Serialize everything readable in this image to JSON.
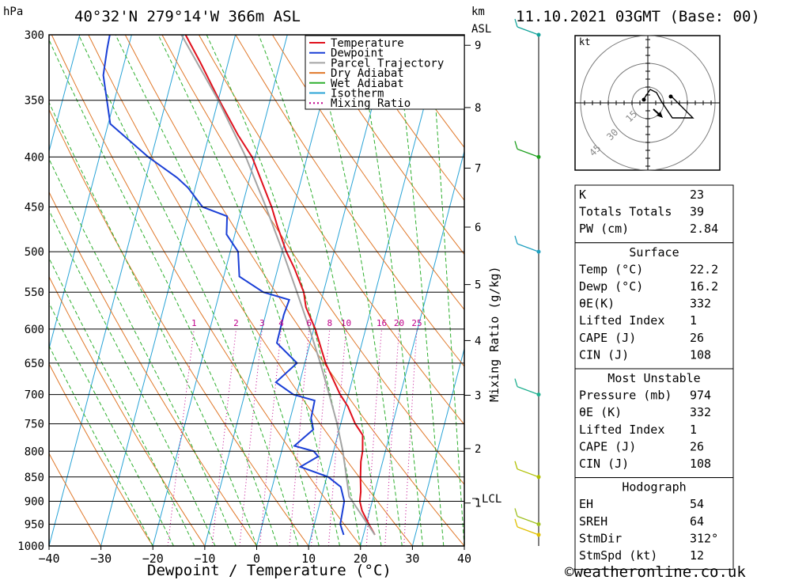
{
  "header": {
    "p_unit": "hPa",
    "location": "40°32'N  279°14'W  366m  ASL",
    "km_unit": "km",
    "asl_unit": "ASL",
    "datetime": "11.10.2021  03GMT  (Base: 00)"
  },
  "chart_data": {
    "type": "line",
    "subtype": "skew-T log-p",
    "xlabel": "Dewpoint / Temperature (°C)",
    "ylabel": "hPa",
    "secondary_ylabel": "Mixing Ratio (g/kg)",
    "xlim": [
      -40,
      40
    ],
    "ylim": [
      1000,
      300
    ],
    "x_ticks": [
      -40,
      -30,
      -20,
      -10,
      0,
      10,
      20,
      30,
      40
    ],
    "x_tick_labels": [
      "−40",
      "−30",
      "−20",
      "−10",
      "0",
      "10",
      "20",
      "30",
      "40"
    ],
    "pressure_levels": [
      300,
      350,
      400,
      450,
      500,
      550,
      600,
      650,
      700,
      750,
      800,
      850,
      900,
      950,
      1000
    ],
    "km_ticks": [
      1,
      2,
      3,
      4,
      5,
      6,
      7,
      8,
      9
    ],
    "lcl_label": "LCL",
    "lcl_pressure": 890,
    "mixing_ratio_labels": [
      "1",
      "2",
      "3",
      "4",
      "6",
      "8",
      "10",
      "16",
      "20",
      "25"
    ],
    "mixing_ratio_label_pressure": 600,
    "series": [
      {
        "name": "Temperature",
        "color": "#e0101c",
        "points": [
          [
            974,
            22.2
          ],
          [
            950,
            20.5
          ],
          [
            920,
            18.5
          ],
          [
            900,
            17.6
          ],
          [
            880,
            17.3
          ],
          [
            850,
            16.5
          ],
          [
            820,
            15.8
          ],
          [
            800,
            15.6
          ],
          [
            770,
            14.8
          ],
          [
            750,
            12.8
          ],
          [
            720,
            10.5
          ],
          [
            700,
            8.4
          ],
          [
            650,
            4.0
          ],
          [
            600,
            0.3
          ],
          [
            570,
            -2.6
          ],
          [
            550,
            -3.8
          ],
          [
            520,
            -6.8
          ],
          [
            500,
            -9.2
          ],
          [
            470,
            -12.3
          ],
          [
            450,
            -14.3
          ],
          [
            420,
            -18.0
          ],
          [
            400,
            -20.6
          ],
          [
            380,
            -24.4
          ],
          [
            350,
            -29.8
          ],
          [
            320,
            -35.4
          ],
          [
            300,
            -39.6
          ]
        ]
      },
      {
        "name": "Dewpoint",
        "color": "#1a3fd6",
        "points": [
          [
            974,
            16.2
          ],
          [
            950,
            15.0
          ],
          [
            900,
            14.6
          ],
          [
            870,
            13.2
          ],
          [
            850,
            10.3
          ],
          [
            830,
            4.4
          ],
          [
            810,
            7.3
          ],
          [
            800,
            6.2
          ],
          [
            790,
            2.2
          ],
          [
            760,
            5.0
          ],
          [
            740,
            4.0
          ],
          [
            710,
            3.8
          ],
          [
            700,
            -0.6
          ],
          [
            680,
            -4.6
          ],
          [
            650,
            -1.5
          ],
          [
            620,
            -6.4
          ],
          [
            580,
            -6.5
          ],
          [
            560,
            -6.2
          ],
          [
            550,
            -11.6
          ],
          [
            530,
            -17.0
          ],
          [
            500,
            -18.5
          ],
          [
            480,
            -21.6
          ],
          [
            460,
            -22.4
          ],
          [
            450,
            -27.6
          ],
          [
            430,
            -31.4
          ],
          [
            420,
            -34.0
          ],
          [
            400,
            -40.6
          ],
          [
            370,
            -49.6
          ],
          [
            330,
            -53.4
          ],
          [
            310,
            -54.0
          ],
          [
            300,
            -54.2
          ]
        ]
      },
      {
        "name": "Parcel Trajectory",
        "color": "#a4a4a4",
        "points": [
          [
            974,
            22.2
          ],
          [
            890,
            15.3
          ],
          [
            850,
            13.8
          ],
          [
            800,
            11.8
          ],
          [
            750,
            9.3
          ],
          [
            700,
            6.3
          ],
          [
            650,
            3.0
          ],
          [
            600,
            -0.8
          ],
          [
            550,
            -5.1
          ],
          [
            500,
            -9.9
          ],
          [
            450,
            -15.4
          ],
          [
            400,
            -21.8
          ],
          [
            350,
            -30.0
          ],
          [
            300,
            -40.4
          ]
        ]
      }
    ],
    "background_lines": [
      "Dry Adiabat",
      "Wet Adiabat",
      "Isotherm",
      "Mixing Ratio"
    ]
  },
  "legend": {
    "items": [
      {
        "label": "Temperature",
        "color": "#e0101c",
        "style": "solid"
      },
      {
        "label": "Dewpoint",
        "color": "#1a3fd6",
        "style": "solid"
      },
      {
        "label": "Parcel Trajectory",
        "color": "#a4a4a4",
        "style": "solid"
      },
      {
        "label": "Dry Adiabat",
        "color": "#e0782a",
        "style": "solid"
      },
      {
        "label": "Wet Adiabat",
        "color": "#2fb02f",
        "style": "solid"
      },
      {
        "label": "Isotherm",
        "color": "#29a3d6",
        "style": "solid"
      },
      {
        "label": "Mixing Ratio",
        "color": "#c0008a",
        "style": "dotted"
      }
    ]
  },
  "wind_profile": {
    "barb_pressures": [
      300,
      400,
      500,
      700,
      850,
      950,
      974
    ]
  },
  "hodograph": {
    "unit_label": "kt",
    "ring_labels": [
      "15",
      "30",
      "45"
    ]
  },
  "indices": {
    "rows": [
      {
        "label": "K",
        "value": "23"
      },
      {
        "label": "Totals Totals",
        "value": "39"
      },
      {
        "label": "PW (cm)",
        "value": "2.84"
      }
    ]
  },
  "surface": {
    "title": "Surface",
    "rows": [
      {
        "label": "Temp (°C)",
        "value": "22.2"
      },
      {
        "label": "Dewp (°C)",
        "value": "16.2"
      },
      {
        "label": "θE(K)",
        "value": "332"
      },
      {
        "label": "Lifted Index",
        "value": "1"
      },
      {
        "label": "CAPE (J)",
        "value": "26"
      },
      {
        "label": "CIN (J)",
        "value": "108"
      }
    ]
  },
  "most_unstable": {
    "title": "Most Unstable",
    "rows": [
      {
        "label": "Pressure (mb)",
        "value": "974"
      },
      {
        "label": "θE (K)",
        "value": "332"
      },
      {
        "label": "Lifted Index",
        "value": "1"
      },
      {
        "label": "CAPE (J)",
        "value": "26"
      },
      {
        "label": "CIN (J)",
        "value": "108"
      }
    ]
  },
  "hodograph_table": {
    "title": "Hodograph",
    "rows": [
      {
        "label": "EH",
        "value": "54"
      },
      {
        "label": "SREH",
        "value": "64"
      },
      {
        "label": "StmDir",
        "value": "312°"
      },
      {
        "label": "StmSpd (kt)",
        "value": "12"
      }
    ]
  },
  "footer": {
    "copyright": "©weatheronline.co.uk"
  }
}
